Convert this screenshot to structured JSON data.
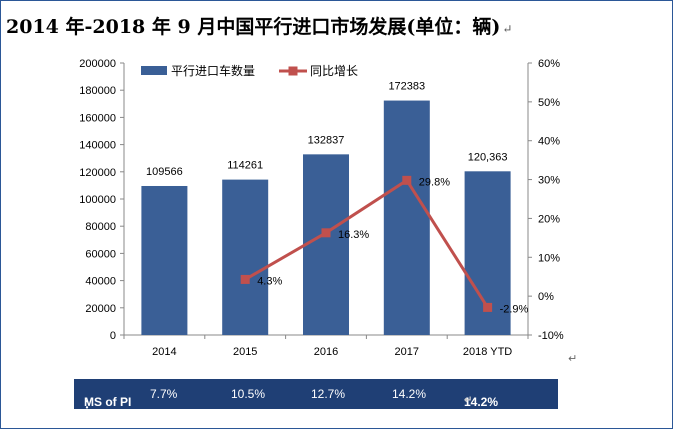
{
  "title": "2014 年-2018 年 9 月中国平行进口市场发展(单位：辆)",
  "title_mark": "↵",
  "after_chart_mark": "↵",
  "chart_data": {
    "type": "bar",
    "categories": [
      "2014",
      "2015",
      "2016",
      "2017",
      "2018 YTD"
    ],
    "series": [
      {
        "name": "平行进口车数量",
        "type": "bar",
        "axis": "left",
        "color": "#3a5f96",
        "values": [
          109566,
          114261,
          132837,
          172383,
          120363
        ],
        "labels": [
          "109566",
          "114261",
          "132837",
          "172383",
          "120,363"
        ]
      },
      {
        "name": "同比增长",
        "type": "line",
        "axis": "right",
        "color": "#c0504d",
        "values": [
          null,
          4.3,
          16.3,
          29.8,
          -2.9
        ],
        "labels": [
          "",
          "4.3%",
          "16.3%",
          "29.8%",
          "-2.9%"
        ]
      }
    ],
    "y_left": {
      "min": 0,
      "max": 200000,
      "step": 20000
    },
    "y_right": {
      "min": -10,
      "max": 60,
      "step": 10,
      "unit": "%"
    },
    "legend": "top-left"
  },
  "ms_row": {
    "label": "MS of PI",
    "colon": "：",
    "values": [
      "7.7%",
      "10.5%",
      "12.7%",
      "14.2%",
      "14.2%"
    ],
    "end_mark": "↵"
  }
}
